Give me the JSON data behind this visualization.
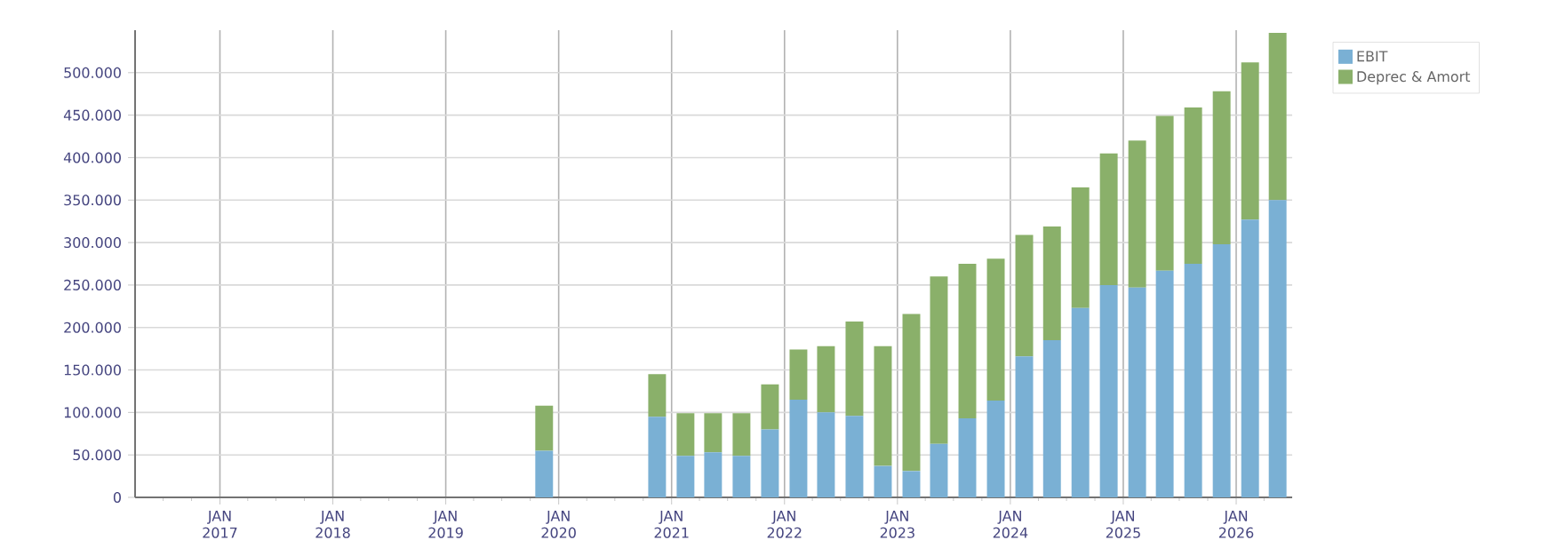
{
  "chart_data": {
    "type": "bar",
    "stacked": true,
    "x": [
      "2019-11-15",
      "2020-11-15",
      "2021-02-15",
      "2021-05-15",
      "2021-08-15",
      "2021-11-15",
      "2022-02-15",
      "2022-05-15",
      "2022-08-15",
      "2022-11-15",
      "2023-02-15",
      "2023-05-15",
      "2023-08-15",
      "2023-11-15",
      "2024-02-15",
      "2024-05-15",
      "2024-08-15",
      "2024-11-15",
      "2025-02-15",
      "2025-05-15",
      "2025-08-15",
      "2025-11-15",
      "2026-02-15",
      "2026-05-15"
    ],
    "series": [
      {
        "name": "EBIT",
        "color": "#7ab0d4",
        "values": [
          55000,
          95000,
          49000,
          53000,
          49000,
          80000,
          115000,
          100000,
          96000,
          37000,
          31000,
          63000,
          93000,
          114000,
          166000,
          185000,
          223000,
          250000,
          247000,
          267000,
          275000,
          298000,
          327000,
          350000
        ]
      },
      {
        "name": "Deprec & Amort",
        "color": "#8ab06a",
        "values": [
          53000,
          50000,
          50000,
          46000,
          50000,
          53000,
          59000,
          78000,
          111000,
          141000,
          185000,
          197000,
          182000,
          167000,
          143000,
          134000,
          142000,
          155000,
          173000,
          182000,
          184000,
          180000,
          185000,
          197000
        ]
      }
    ],
    "xlim": [
      "2016-04",
      "2026-07"
    ],
    "xticks": [
      {
        "value": "2016-07-01",
        "label": null
      },
      {
        "value": "2016-10-01",
        "label": null
      },
      {
        "value": "2017-01-01",
        "label": "JAN 2017"
      },
      {
        "value": "2017-04-01",
        "label": null
      },
      {
        "value": "2017-07-01",
        "label": null
      },
      {
        "value": "2017-10-01",
        "label": null
      },
      {
        "value": "2018-01-01",
        "label": "JAN 2018"
      },
      {
        "value": "2018-04-01",
        "label": null
      },
      {
        "value": "2018-07-01",
        "label": null
      },
      {
        "value": "2018-10-01",
        "label": null
      },
      {
        "value": "2019-01-01",
        "label": "JAN 2019"
      },
      {
        "value": "2019-04-01",
        "label": null
      },
      {
        "value": "2019-07-01",
        "label": null
      },
      {
        "value": "2019-10-01",
        "label": null
      },
      {
        "value": "2020-01-01",
        "label": "JAN 2020"
      },
      {
        "value": "2020-04-01",
        "label": null
      },
      {
        "value": "2020-07-01",
        "label": null
      },
      {
        "value": "2020-10-01",
        "label": null
      },
      {
        "value": "2021-01-01",
        "label": "JAN 2021"
      },
      {
        "value": "2021-04-01",
        "label": null
      },
      {
        "value": "2021-07-01",
        "label": null
      },
      {
        "value": "2021-10-01",
        "label": null
      },
      {
        "value": "2022-01-01",
        "label": "JAN 2022"
      },
      {
        "value": "2022-04-01",
        "label": null
      },
      {
        "value": "2022-07-01",
        "label": null
      },
      {
        "value": "2022-10-01",
        "label": null
      },
      {
        "value": "2023-01-01",
        "label": "JAN 2023"
      },
      {
        "value": "2023-04-01",
        "label": null
      },
      {
        "value": "2023-07-01",
        "label": null
      },
      {
        "value": "2023-10-01",
        "label": null
      },
      {
        "value": "2024-01-01",
        "label": "JAN 2024"
      },
      {
        "value": "2024-04-01",
        "label": null
      },
      {
        "value": "2024-07-01",
        "label": null
      },
      {
        "value": "2024-10-01",
        "label": null
      },
      {
        "value": "2025-01-01",
        "label": "JAN 2025"
      },
      {
        "value": "2025-04-01",
        "label": null
      },
      {
        "value": "2025-07-01",
        "label": null
      },
      {
        "value": "2025-10-01",
        "label": null
      },
      {
        "value": "2026-01-01",
        "label": "JAN 2026"
      },
      {
        "value": "2026-04-01",
        "label": null
      }
    ],
    "ylim": [
      0,
      550000
    ],
    "yticks": [
      {
        "value": 0,
        "label": "0"
      },
      {
        "value": 50000,
        "label": "50.000"
      },
      {
        "value": 100000,
        "label": "100.000"
      },
      {
        "value": 150000,
        "label": "150.000"
      },
      {
        "value": 200000,
        "label": "200.000"
      },
      {
        "value": 250000,
        "label": "250.000"
      },
      {
        "value": 300000,
        "label": "300.000"
      },
      {
        "value": 350000,
        "label": "350.000"
      },
      {
        "value": 400000,
        "label": "400.000"
      },
      {
        "value": 450000,
        "label": "450.000"
      },
      {
        "value": 500000,
        "label": "500.000"
      }
    ],
    "grid": true,
    "legend": "top right"
  }
}
